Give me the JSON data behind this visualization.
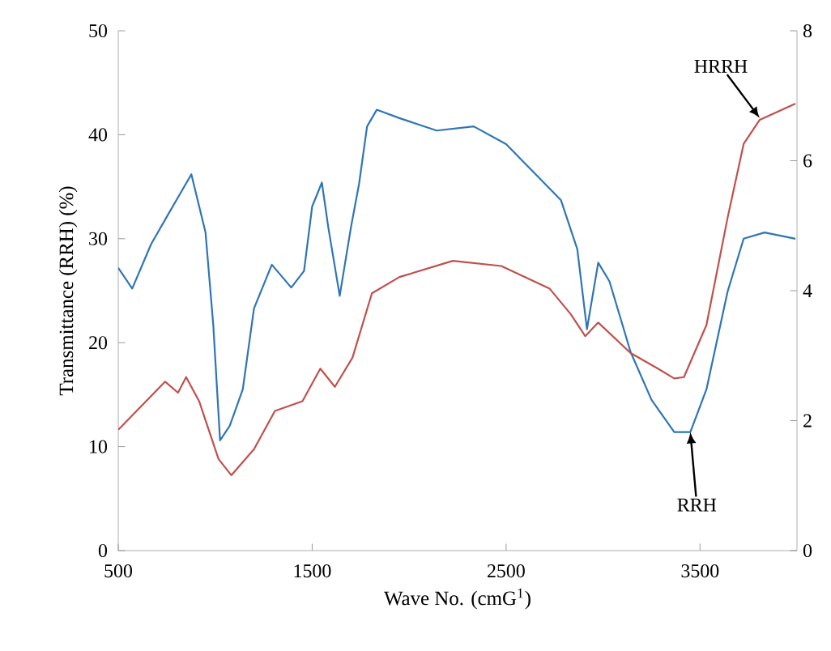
{
  "chart_data": {
    "type": "line",
    "xlabel": "Wave No. (cmG$^{1}$)",
    "ylabel": "Transmittance (RRH) (%)",
    "xlim": [
      500,
      4000
    ],
    "xticks": [
      500,
      1500,
      2500,
      3500
    ],
    "ylim": [
      0,
      50
    ],
    "yticks": [
      0,
      10,
      20,
      30,
      40,
      50
    ],
    "y2lim": [
      0,
      8
    ],
    "y2ticks": [
      0,
      2,
      4,
      6,
      8
    ],
    "series": [
      {
        "color": "#2e75b6",
        "x": [
          500,
          572,
          670,
          750,
          877,
          950,
          990,
          1025,
          1075,
          1142,
          1200,
          1292,
          1392,
          1458,
          1500,
          1550,
          1583,
          1642,
          1700,
          1742,
          1783,
          1833,
          1950,
          2142,
          2333,
          2500,
          2783,
          2867,
          2917,
          2975,
          3033,
          3142,
          3250,
          3367,
          3450,
          3533,
          3642,
          3725,
          3833,
          3992
        ],
        "values": [
          27.2,
          25.2,
          29.5,
          32.1,
          36.2,
          30.6,
          21.7,
          10.6,
          12,
          15.5,
          23.3,
          27.5,
          25.3,
          26.9,
          33.1,
          35.4,
          31.1,
          24.5,
          31.1,
          35.3,
          40.8,
          42.4,
          41.6,
          40.4,
          40.8,
          39.1,
          33.7,
          29,
          21.3,
          27.7,
          25.9,
          19.1,
          14.5,
          11.4,
          11.4,
          15.5,
          24.9,
          30,
          30.6,
          30
        ]
      },
      {
        "color": "#c0504d",
        "axis": "y2",
        "x": [
          500,
          742,
          808,
          850,
          917,
          1017,
          1083,
          1200,
          1308,
          1450,
          1542,
          1617,
          1708,
          1808,
          1950,
          2225,
          2475,
          2725,
          2833,
          2908,
          2975,
          3142,
          3283,
          3367,
          3417,
          3533,
          3642,
          3725,
          3808,
          3992
        ],
        "values": [
          1.86,
          2.6,
          2.43,
          2.67,
          2.3,
          1.41,
          1.16,
          1.56,
          2.15,
          2.3,
          2.8,
          2.52,
          2.97,
          3.96,
          4.21,
          4.46,
          4.38,
          4.03,
          3.64,
          3.3,
          3.51,
          3.04,
          2.8,
          2.65,
          2.67,
          3.47,
          5.12,
          6.26,
          6.63,
          6.88
        ]
      }
    ],
    "annotations": [
      {
        "text": "HRRH",
        "x": 3808,
        "y": 41.6
      },
      {
        "text": "RRH",
        "x": 3450,
        "y": 11.4
      }
    ],
    "grid": false,
    "marker": "none",
    "line_style": "solid"
  }
}
